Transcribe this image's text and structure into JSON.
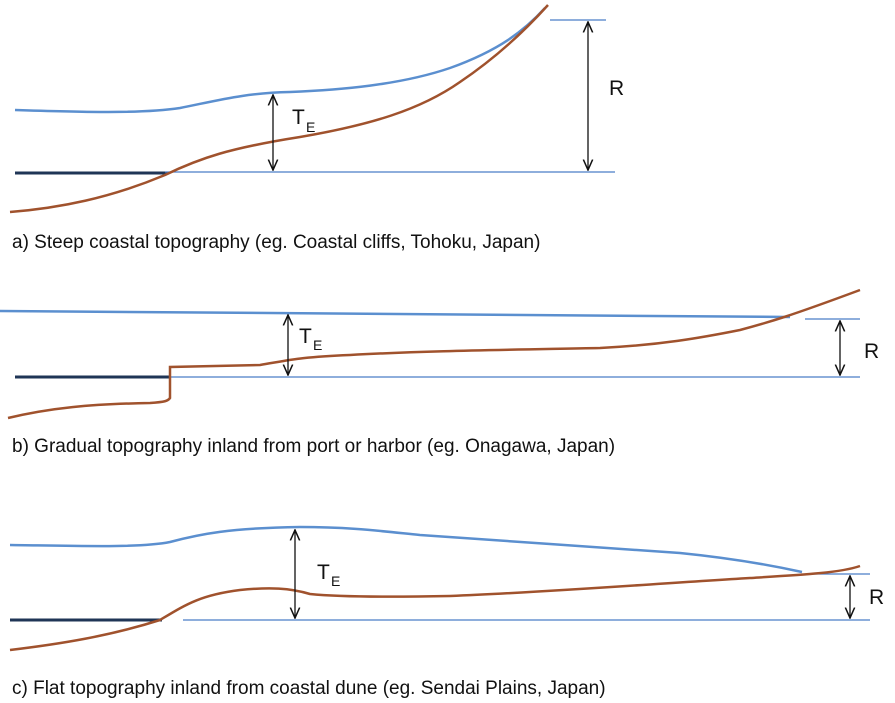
{
  "panels": [
    {
      "caption": "a)  Steep coastal topography (eg. Coastal cliffs, Tohoku, Japan)",
      "te": {
        "main": "T",
        "sub": "E"
      },
      "r": "R"
    },
    {
      "caption": "b)  Gradual topography inland from port or harbor (eg. Onagawa, Japan)",
      "te": {
        "main": "T",
        "sub": "E"
      },
      "r": "R"
    },
    {
      "caption": "c)  Flat topography inland from coastal dune (eg. Sendai Plains, Japan)",
      "te": {
        "main": "T",
        "sub": "E"
      },
      "r": "R"
    }
  ]
}
